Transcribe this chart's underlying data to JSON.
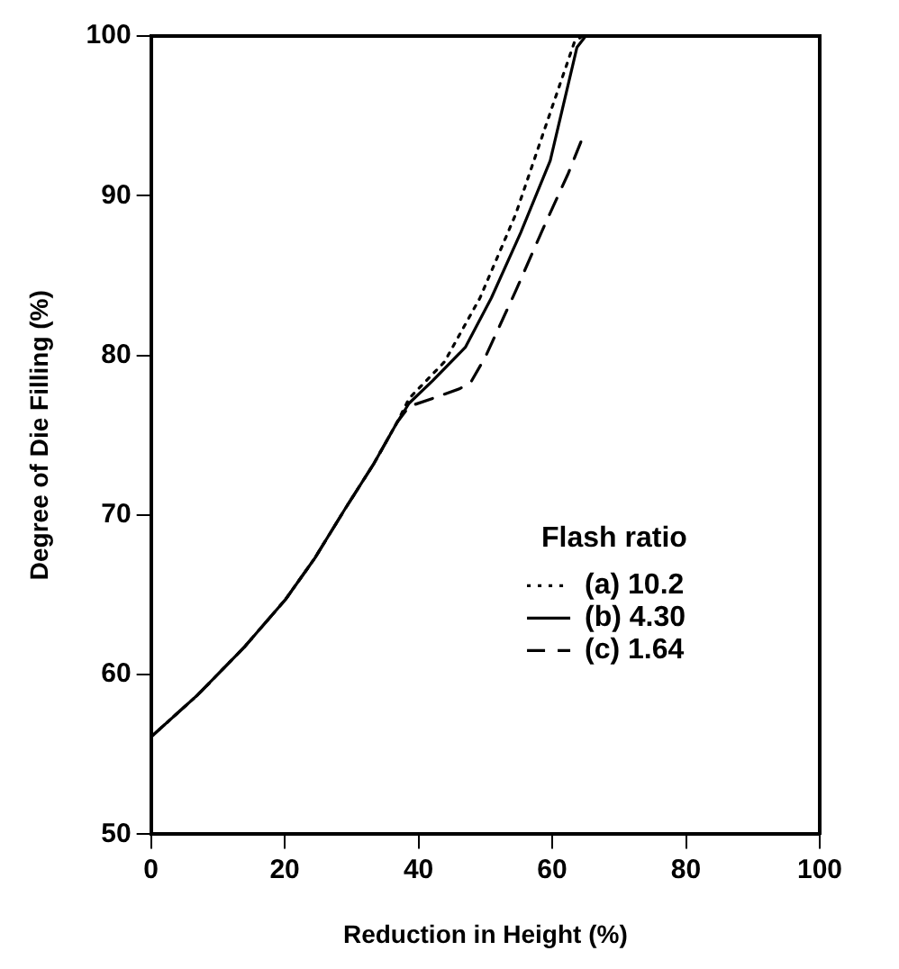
{
  "chart_data": {
    "type": "line",
    "xlabel": "Reduction in Height (%)",
    "ylabel": "Degree of Die Filling (%)",
    "legend_title": "Flash ratio",
    "legend": "right",
    "grid": false,
    "marker": "none",
    "xlim": [
      0,
      100
    ],
    "xticks": [
      0,
      20,
      40,
      60,
      80,
      100
    ],
    "ylim": [
      50,
      100
    ],
    "yticks": [
      50,
      60,
      70,
      80,
      90,
      100
    ],
    "series": [
      {
        "name": "(a) 10.2",
        "color": "#000000",
        "line_style": "dotted",
        "x": [
          0,
          6.9,
          13.9,
          20.1,
          24.5,
          28.9,
          33.3,
          36.8,
          38.6,
          43.9,
          49.2,
          54.5,
          59.7,
          63.3,
          64.5
        ],
        "values": [
          56.1,
          58.7,
          61.7,
          64.7,
          67.3,
          70.3,
          73.2,
          75.8,
          77.3,
          79.6,
          83.6,
          88.8,
          95.2,
          99.6,
          100
        ]
      },
      {
        "name": "(b) 4.30",
        "color": "#000000",
        "line_style": "solid",
        "x": [
          0,
          6.9,
          13.9,
          20.1,
          24.5,
          28.9,
          33.3,
          36.8,
          38.6,
          42.1,
          47,
          50.9,
          55.3,
          59.7,
          63.7,
          65
        ],
        "values": [
          56.1,
          58.7,
          61.7,
          64.7,
          67.3,
          70.3,
          73.2,
          75.8,
          77,
          78.4,
          80.5,
          83.6,
          87.7,
          92.2,
          99.3,
          100
        ]
      },
      {
        "name": "(c) 1.64",
        "color": "#000000",
        "line_style": "dashed",
        "x": [
          0,
          6.9,
          13.9,
          20.1,
          24.5,
          28.9,
          33.3,
          36.8,
          38.6,
          42.1,
          46.1,
          47.8,
          50,
          54.5,
          58.8,
          62.4,
          64.6
        ],
        "values": [
          56.1,
          58.7,
          61.7,
          64.7,
          67.3,
          70.3,
          73.2,
          75.8,
          76.8,
          77.3,
          77.9,
          78.3,
          79.9,
          84,
          88.1,
          91.4,
          93.7
        ]
      }
    ]
  }
}
